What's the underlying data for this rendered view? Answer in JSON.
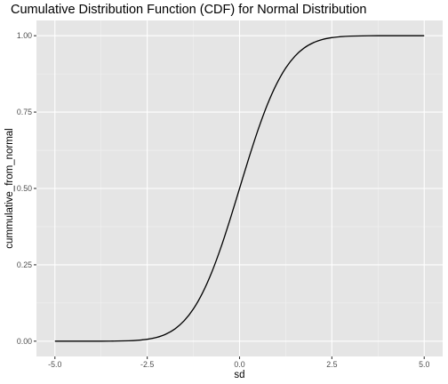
{
  "chart_data": {
    "type": "line",
    "title": "Cumulative Distribution Function (CDF) for Normal Distribution",
    "xlabel": "sd",
    "ylabel": "cummulative_from_normal",
    "xlim": [
      -5,
      5
    ],
    "ylim": [
      0,
      1
    ],
    "x_ticks": [
      -5,
      -2.5,
      0,
      2.5,
      5
    ],
    "x_tick_labels": [
      "-5.0",
      "-2.5",
      "0.0",
      "2.5",
      "5.0"
    ],
    "y_ticks": [
      0,
      0.25,
      0.5,
      0.75,
      1
    ],
    "y_tick_labels": [
      "0.00",
      "0.25",
      "0.50",
      "0.75",
      "1.00"
    ],
    "grid": true,
    "series": [
      {
        "x": [
          -5.0,
          -4.5,
          -4.0,
          -3.5,
          -3.0,
          -2.75,
          -2.5,
          -2.25,
          -2.0,
          -1.75,
          -1.5,
          -1.25,
          -1.0,
          -0.75,
          -0.5,
          -0.25,
          0.0,
          0.25,
          0.5,
          0.75,
          1.0,
          1.25,
          1.5,
          1.75,
          2.0,
          2.25,
          2.5,
          2.75,
          3.0,
          3.5,
          4.0,
          4.5,
          5.0
        ],
        "y": [
          0.0,
          0.0,
          0.0,
          0.0002,
          0.0013,
          0.003,
          0.0062,
          0.0122,
          0.0228,
          0.0401,
          0.0668,
          0.1056,
          0.1587,
          0.2266,
          0.3085,
          0.4013,
          0.5,
          0.5987,
          0.6915,
          0.7734,
          0.8413,
          0.8944,
          0.9332,
          0.9599,
          0.9772,
          0.9878,
          0.9938,
          0.997,
          0.9987,
          0.9998,
          1.0,
          1.0,
          1.0
        ]
      }
    ],
    "colors": {
      "panel_background": "#e5e5e5",
      "grid_major": "#ffffff",
      "grid_minor": "#f2f2f2",
      "line": "#000000",
      "tick_text": "#4d4d4d",
      "text": "#000000"
    }
  }
}
